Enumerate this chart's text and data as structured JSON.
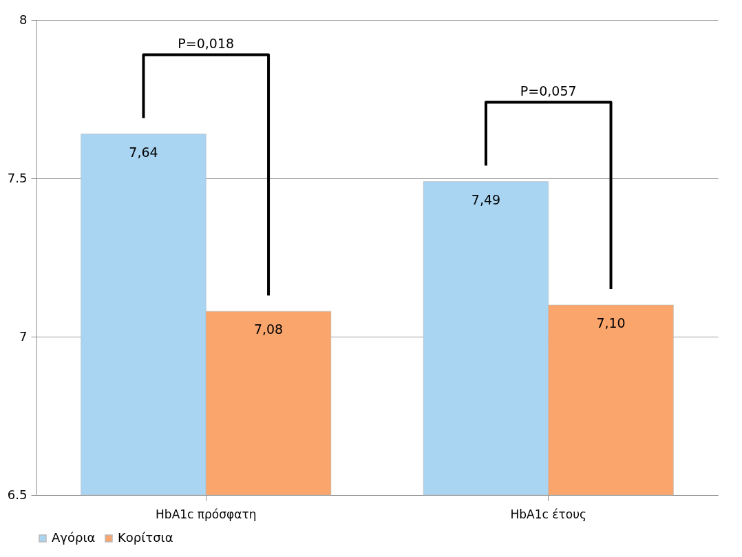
{
  "chart_data": {
    "type": "bar",
    "categories": [
      "HbA1c πρόσφατη",
      "HbA1c έτους"
    ],
    "series": [
      {
        "name": "Αγόρια",
        "color": "#a9d5f2",
        "values": [
          7.64,
          7.49
        ],
        "value_labels": [
          "7,64",
          "7,49"
        ]
      },
      {
        "name": "Κορίτσια",
        "color": "#f9a56c",
        "values": [
          7.08,
          7.1
        ],
        "value_labels": [
          "7,08",
          "7,10"
        ]
      }
    ],
    "ylim": [
      6.5,
      8
    ],
    "yticks": [
      6.5,
      7,
      7.5,
      8
    ],
    "grid": "y",
    "legend": "bottom",
    "annotations": [
      "P=0,018",
      "P=0,057"
    ]
  }
}
